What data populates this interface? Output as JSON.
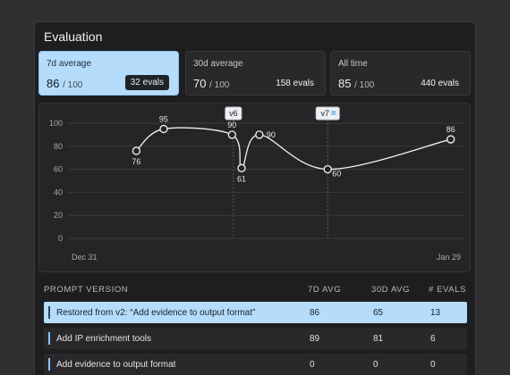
{
  "title": "Evaluation",
  "cards": [
    {
      "label": "7d average",
      "value": "86",
      "denominator": "/ 100",
      "evals": "32 evals",
      "active": true
    },
    {
      "label": "30d average",
      "value": "70",
      "denominator": "/ 100",
      "evals": "158 evals",
      "active": false
    },
    {
      "label": "All time",
      "value": "85",
      "denominator": "/ 100",
      "evals": "440 evals",
      "active": false
    }
  ],
  "chart_data": {
    "type": "line",
    "ylim": [
      0,
      100
    ],
    "y_ticks": [
      "100",
      "80",
      "60",
      "40",
      "20",
      "0"
    ],
    "x_start_label": "Dec 31",
    "x_end_label": "Jan 29",
    "points": [
      {
        "day": 5,
        "value": 76
      },
      {
        "day": 7,
        "value": 95
      },
      {
        "day": 12,
        "value": 90
      },
      {
        "day": 12.7,
        "value": 61
      },
      {
        "day": 14,
        "value": 90
      },
      {
        "day": 19,
        "value": 60
      },
      {
        "day": 28,
        "value": 86
      }
    ],
    "version_markers": [
      {
        "label": "v6",
        "day": 12.1
      },
      {
        "label": "v7",
        "day": 19
      }
    ]
  },
  "table": {
    "headers": {
      "version": "PROMPT VERSION",
      "avg7": "7D AVG",
      "avg30": "30D AVG",
      "evals": "# EVALS"
    },
    "rows": [
      {
        "name": "Restored from v2: “Add evidence to output format”",
        "avg7": "86",
        "avg30": "65",
        "evals": "13",
        "active": true
      },
      {
        "name": "Add IP enrichment tools",
        "avg7": "89",
        "avg30": "81",
        "evals": "6",
        "active": false
      },
      {
        "name": "Add evidence to output format",
        "avg7": "0",
        "avg30": "0",
        "evals": "0",
        "active": false
      }
    ]
  },
  "colors": {
    "accent": "#b5dcfa",
    "panel": "#1e1e20",
    "line": "#f2f2f2"
  }
}
